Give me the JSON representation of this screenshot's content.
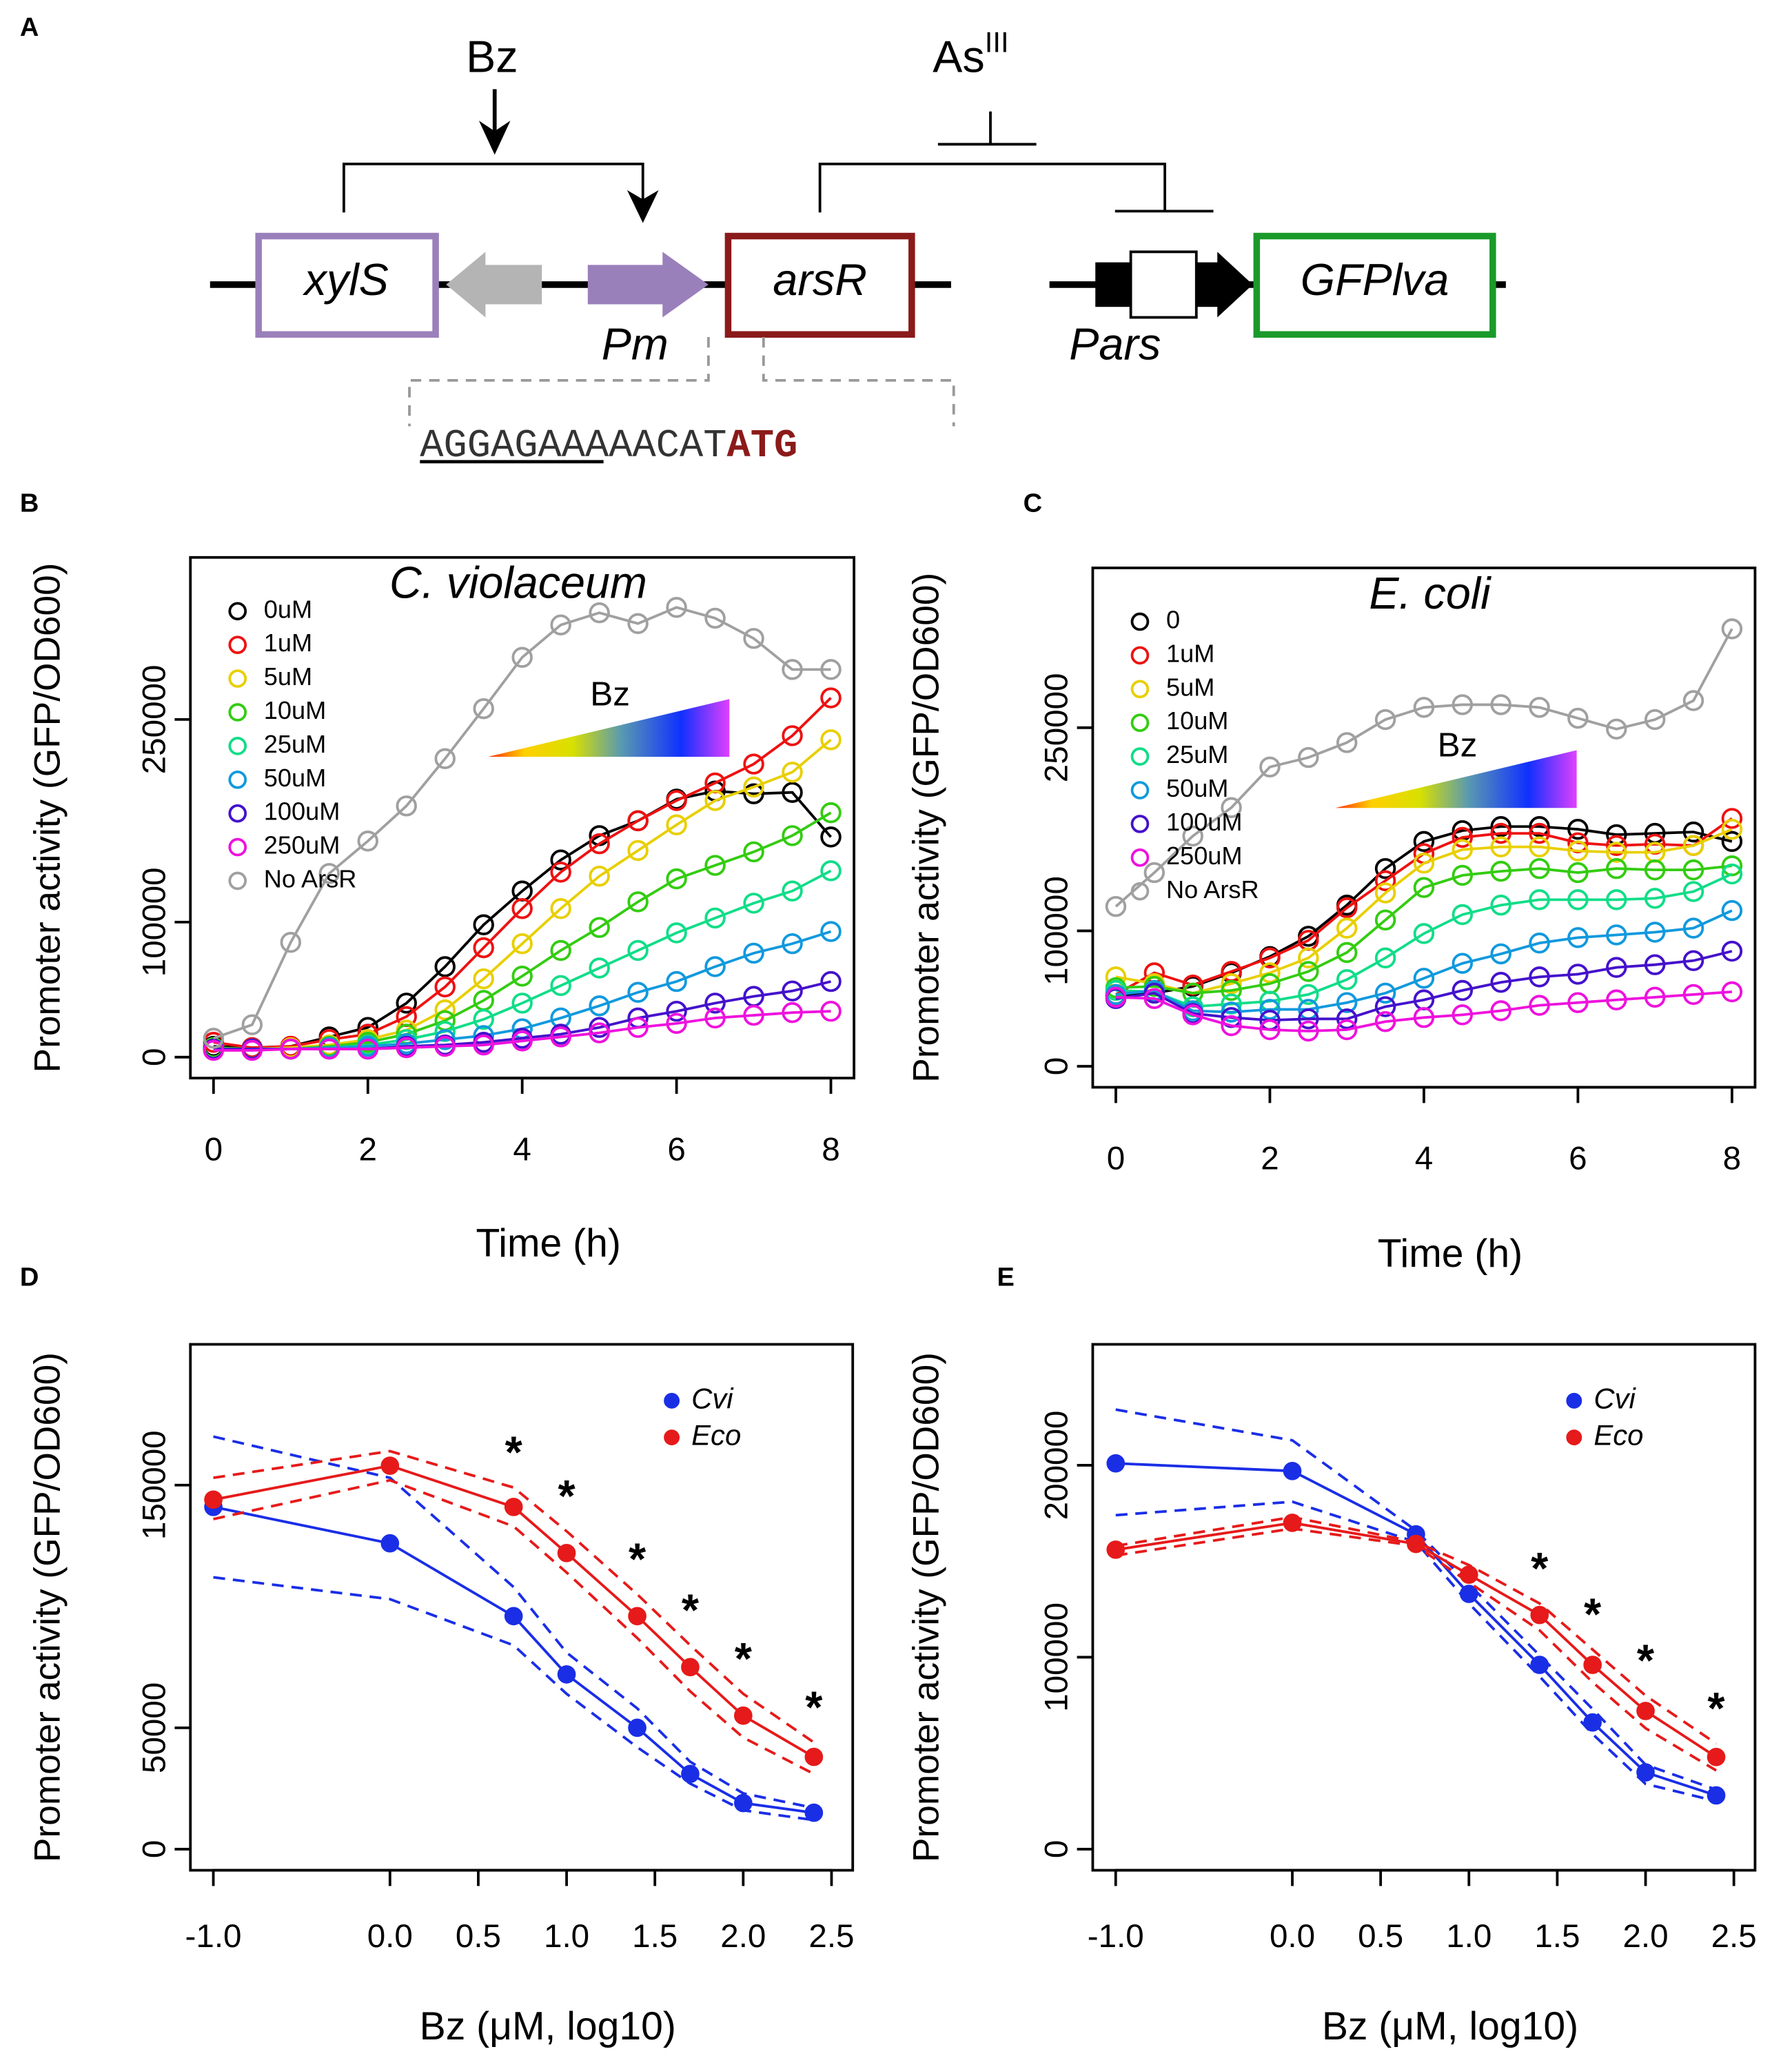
{
  "diagram": {
    "label": "A",
    "inducer_1": "Bz",
    "inducer_2": "As",
    "inducer_2_sup": "III",
    "genes": [
      "xylS",
      "arsR",
      "GFPlva"
    ],
    "promoters": [
      "Pm",
      "Pars"
    ],
    "sequence": "AGGAGAAAAACAT",
    "start_codon": "ATG"
  },
  "chart_data": [
    {
      "type": "line",
      "label": "B",
      "title": "C. violaceum",
      "xlabel": "Time (h)",
      "ylabel": "Promoter activity (GFP/OD600)",
      "gradient_label": "Bz",
      "legend": "top-left",
      "markers": "open-circle",
      "x": [
        0,
        0.5,
        1,
        1.5,
        2,
        2.5,
        3,
        3.5,
        4,
        4.5,
        5,
        5.5,
        6,
        6.5,
        7,
        7.5,
        8
      ],
      "xlim": [
        -0.3,
        8.3
      ],
      "ylim": [
        -15500,
        370000
      ],
      "xticks": [
        0,
        2,
        4,
        6,
        8
      ],
      "yticks": [
        0,
        100000,
        250000
      ],
      "series": [
        {
          "name": "0uM",
          "color": "#000000",
          "values": [
            8000,
            7000,
            8000,
            15000,
            22000,
            40000,
            67000,
            98000,
            123000,
            146000,
            164000,
            175000,
            191000,
            197000,
            195000,
            196000,
            163000
          ]
        },
        {
          "name": "1uM",
          "color": "#ee1111",
          "values": [
            11000,
            7000,
            8000,
            13000,
            17000,
            30000,
            52000,
            81000,
            110000,
            137000,
            158000,
            175000,
            190000,
            203000,
            217000,
            238000,
            266000
          ]
        },
        {
          "name": "5uM",
          "color": "#e8cf00",
          "values": [
            7000,
            6000,
            7000,
            9000,
            13000,
            20000,
            35000,
            58000,
            84000,
            110000,
            134000,
            153000,
            172000,
            190000,
            200000,
            211000,
            235000
          ]
        },
        {
          "name": "10uM",
          "color": "#33cc11",
          "values": [
            7000,
            6000,
            6000,
            8000,
            11000,
            17000,
            27000,
            42000,
            60000,
            79000,
            96000,
            115000,
            132000,
            142000,
            152000,
            164000,
            181000
          ]
        },
        {
          "name": "25uM",
          "color": "#11dd88",
          "values": [
            6000,
            6000,
            6000,
            7000,
            9000,
            13000,
            19000,
            28000,
            40000,
            53000,
            66000,
            79000,
            92000,
            103000,
            114000,
            123000,
            138000
          ]
        },
        {
          "name": "50uM",
          "color": "#1199dd",
          "values": [
            6000,
            6000,
            6000,
            7000,
            8000,
            10000,
            13000,
            16000,
            21000,
            29000,
            38000,
            48000,
            56000,
            67000,
            77000,
            84000,
            93000
          ]
        },
        {
          "name": "100uM",
          "color": "#4411cc",
          "values": [
            6000,
            6000,
            6000,
            6000,
            6000,
            8000,
            9000,
            11000,
            14000,
            17000,
            22000,
            29000,
            34000,
            40000,
            45000,
            49000,
            56000
          ]
        },
        {
          "name": "250uM",
          "color": "#ee11dd",
          "values": [
            5000,
            5000,
            6000,
            6000,
            6000,
            7000,
            8000,
            9000,
            12000,
            15000,
            18000,
            22000,
            25000,
            29000,
            31000,
            33000,
            34000
          ]
        },
        {
          "name": "No ArsR",
          "color": "#a0a0a0",
          "values": [
            14000,
            24000,
            85000,
            136000,
            160000,
            186000,
            221000,
            258000,
            296000,
            320000,
            329000,
            321000,
            333000,
            325000,
            310000,
            287000,
            287000
          ]
        }
      ]
    },
    {
      "type": "line",
      "label": "C",
      "title": "E. coli",
      "xlabel": "Time (h)",
      "ylabel": "Promoter activity (GFP/OD600)",
      "gradient_label": "Bz",
      "legend": "top-left",
      "markers": "open-circle",
      "x": [
        0,
        0.5,
        1,
        1.5,
        2,
        2.5,
        3,
        3.5,
        4,
        4.5,
        5,
        5.5,
        6,
        6.5,
        7,
        7.5,
        8
      ],
      "xlim": [
        -0.3,
        8.3
      ],
      "ylim": [
        -15500,
        368000
      ],
      "xticks": [
        0,
        2,
        4,
        6,
        8
      ],
      "yticks": [
        0,
        100000,
        250000
      ],
      "series": [
        {
          "name": "0",
          "color": "#000000",
          "values": [
            52000,
            54000,
            59000,
            69000,
            81000,
            96000,
            119000,
            146000,
            166000,
            174000,
            177000,
            177000,
            175000,
            171000,
            172000,
            173000,
            166000
          ]
        },
        {
          "name": "1uM",
          "color": "#ee1111",
          "values": [
            53000,
            69000,
            60000,
            70000,
            80000,
            93000,
            117000,
            137000,
            157000,
            169000,
            172000,
            172000,
            165000,
            163000,
            164000,
            163000,
            183000
          ]
        },
        {
          "name": "5uM",
          "color": "#e8cf00",
          "values": [
            66000,
            61000,
            54000,
            61000,
            69000,
            80000,
            102000,
            128000,
            150000,
            160000,
            162000,
            162000,
            159000,
            158000,
            158000,
            163000,
            175000
          ]
        },
        {
          "name": "10uM",
          "color": "#33cc11",
          "values": [
            58000,
            59000,
            54000,
            56000,
            61000,
            70000,
            84000,
            108000,
            132000,
            141000,
            144000,
            146000,
            143000,
            146000,
            145000,
            145000,
            148000
          ]
        },
        {
          "name": "25uM",
          "color": "#11dd88",
          "values": [
            56000,
            55000,
            44000,
            46000,
            48000,
            53000,
            64000,
            80000,
            98000,
            112000,
            119000,
            123000,
            123000,
            123000,
            124000,
            129000,
            142000
          ]
        },
        {
          "name": "50uM",
          "color": "#1199dd",
          "values": [
            53000,
            56000,
            41000,
            40000,
            42000,
            42000,
            47000,
            54000,
            65000,
            76000,
            83000,
            91000,
            95000,
            97000,
            99000,
            102000,
            115000
          ]
        },
        {
          "name": "100uM",
          "color": "#4411cc",
          "values": [
            50000,
            54000,
            39000,
            36000,
            34000,
            35000,
            35000,
            44000,
            49000,
            56000,
            62000,
            66000,
            68000,
            73000,
            75000,
            78000,
            85000
          ]
        },
        {
          "name": "250uM",
          "color": "#ee11dd",
          "values": [
            51000,
            50000,
            38000,
            30000,
            27000,
            26000,
            27000,
            33000,
            36000,
            38000,
            41000,
            45000,
            47000,
            49000,
            51000,
            53000,
            55000
          ]
        },
        {
          "name": "No ArsR",
          "color": "#a0a0a0",
          "values": [
            118000,
            143000,
            170000,
            191000,
            221000,
            228000,
            239000,
            256000,
            265000,
            267000,
            267000,
            265000,
            257000,
            249000,
            256000,
            270000,
            323000
          ]
        }
      ]
    },
    {
      "type": "line",
      "label": "D",
      "xlabel": "Bz (μM, log10)",
      "ylabel": "Promoter activity (GFP/OD600)",
      "legend": "top-right",
      "markers": "filled-circle",
      "x": [
        -1,
        0,
        0.7,
        1,
        1.4,
        1.7,
        2,
        2.4
      ],
      "xlim": [
        -1.13,
        2.62
      ],
      "ylim": [
        -8700,
        208000
      ],
      "xticks": [
        {
          "value": -1,
          "label": "-1.0"
        },
        {
          "value": 0,
          "label": "0.0"
        },
        0.5,
        {
          "value": 1,
          "label": "1.0"
        },
        1.5,
        {
          "value": 2,
          "label": "2.0"
        },
        2.5
      ],
      "yticks": [
        0,
        50000,
        150000
      ],
      "series": [
        {
          "name": "Cvi",
          "color": "#1a2ee6",
          "values": [
            141000,
            126000,
            96000,
            72000,
            50000,
            31000,
            19000,
            15000
          ],
          "upper": [
            170000,
            153000,
            108000,
            81000,
            58000,
            36000,
            23000,
            17000
          ],
          "lower": [
            112000,
            103000,
            84000,
            64000,
            42000,
            27000,
            16000,
            12000
          ]
        },
        {
          "name": "Eco",
          "color": "#e61a1a",
          "values": [
            144000,
            158000,
            141000,
            122000,
            96000,
            75000,
            55000,
            38000
          ],
          "upper": [
            153000,
            164000,
            149000,
            131000,
            105000,
            84000,
            64000,
            44000
          ],
          "lower": [
            136000,
            152000,
            133000,
            114000,
            87000,
            65000,
            46000,
            31000
          ]
        }
      ],
      "annotations": [
        {
          "text": "*",
          "x": 0.7
        },
        {
          "text": "*",
          "x": 1
        },
        {
          "text": "*",
          "x": 1.4
        },
        {
          "text": "*",
          "x": 1.7
        },
        {
          "text": "*",
          "x": 2
        },
        {
          "text": "*",
          "x": 2.4
        }
      ]
    },
    {
      "type": "line",
      "label": "E",
      "xlabel": "Bz (μM, log10)",
      "ylabel": "Promoter activity (GFP/OD600)",
      "legend": "top-right",
      "markers": "filled-circle",
      "x": [
        -1,
        0,
        0.7,
        1,
        1.4,
        1.7,
        2,
        2.4
      ],
      "xlim": [
        -1.13,
        2.62
      ],
      "ylim": [
        -11000,
        263000
      ],
      "xticks": [
        {
          "value": -1,
          "label": "-1.0"
        },
        {
          "value": 0,
          "label": "0.0"
        },
        0.5,
        {
          "value": 1,
          "label": "1.0"
        },
        1.5,
        {
          "value": 2,
          "label": "2.0"
        },
        2.5
      ],
      "yticks": [
        0,
        100000,
        200000
      ],
      "series": [
        {
          "name": "Cvi",
          "color": "#1a2ee6",
          "values": [
            201000,
            197000,
            164000,
            133000,
            96000,
            66000,
            40000,
            28000
          ],
          "upper": [
            229000,
            213000,
            166000,
            138000,
            101000,
            73000,
            44000,
            31000
          ],
          "lower": [
            174000,
            181000,
            160000,
            128000,
            90000,
            60000,
            34000,
            25000
          ]
        },
        {
          "name": "Eco",
          "color": "#e61a1a",
          "values": [
            156000,
            170000,
            159000,
            143000,
            122000,
            96000,
            72000,
            48000
          ],
          "upper": [
            158000,
            173000,
            160000,
            148000,
            128000,
            104000,
            80000,
            55000
          ],
          "lower": [
            153000,
            167000,
            158000,
            139000,
            114000,
            87000,
            63000,
            41000
          ]
        }
      ],
      "annotations": [
        {
          "text": "*",
          "x": 1.4
        },
        {
          "text": "*",
          "x": 1.7
        },
        {
          "text": "*",
          "x": 2
        },
        {
          "text": "*",
          "x": 2.4
        }
      ]
    }
  ]
}
